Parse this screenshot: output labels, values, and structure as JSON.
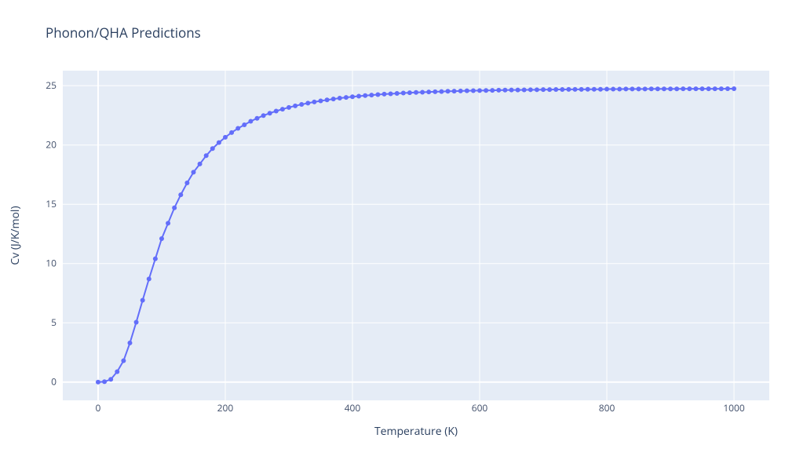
{
  "title": "Phonon/QHA Predictions",
  "chart": {
    "type": "line",
    "background_color": "#ffffff",
    "plot_bg_color": "#e5ecf6",
    "line_color": "#636efa",
    "marker_color": "#636efa",
    "marker_size": 6,
    "grid_color": "#ffffff",
    "tick_color": "#42506b",
    "title_color": "#2a3f5f",
    "x": {
      "title": "Temperature (K)",
      "min": -55.5,
      "max": 1055.5,
      "ticks": [
        0,
        200,
        400,
        600,
        800,
        1000
      ]
    },
    "y": {
      "title": "Cv (J/K/mol)",
      "min": -1.54,
      "max": 26.27,
      "ticks": [
        0,
        5,
        10,
        15,
        20,
        25
      ]
    },
    "data": [
      [
        0,
        0.0
      ],
      [
        10,
        0.03
      ],
      [
        20,
        0.23
      ],
      [
        30,
        0.88
      ],
      [
        40,
        1.8
      ],
      [
        50,
        3.3
      ],
      [
        60,
        5.05
      ],
      [
        70,
        6.9
      ],
      [
        80,
        8.7
      ],
      [
        90,
        10.4
      ],
      [
        100,
        12.1
      ],
      [
        110,
        13.4
      ],
      [
        120,
        14.7
      ],
      [
        130,
        15.8
      ],
      [
        140,
        16.8
      ],
      [
        150,
        17.7
      ],
      [
        160,
        18.4
      ],
      [
        170,
        19.1
      ],
      [
        180,
        19.7
      ],
      [
        190,
        20.2
      ],
      [
        200,
        20.65
      ],
      [
        210,
        21.05
      ],
      [
        220,
        21.4
      ],
      [
        230,
        21.7
      ],
      [
        240,
        22.0
      ],
      [
        250,
        22.25
      ],
      [
        260,
        22.48
      ],
      [
        270,
        22.68
      ],
      [
        280,
        22.86
      ],
      [
        290,
        23.02
      ],
      [
        300,
        23.17
      ],
      [
        310,
        23.3
      ],
      [
        320,
        23.42
      ],
      [
        330,
        23.53
      ],
      [
        340,
        23.63
      ],
      [
        350,
        23.72
      ],
      [
        360,
        23.8
      ],
      [
        370,
        23.88
      ],
      [
        380,
        23.95
      ],
      [
        390,
        24.01
      ],
      [
        400,
        24.07
      ],
      [
        410,
        24.12
      ],
      [
        420,
        24.17
      ],
      [
        430,
        24.21
      ],
      [
        440,
        24.25
      ],
      [
        450,
        24.29
      ],
      [
        460,
        24.32
      ],
      [
        470,
        24.35
      ],
      [
        480,
        24.38
      ],
      [
        490,
        24.41
      ],
      [
        500,
        24.43
      ],
      [
        510,
        24.45
      ],
      [
        520,
        24.47
      ],
      [
        530,
        24.49
      ],
      [
        540,
        24.51
      ],
      [
        550,
        24.53
      ],
      [
        560,
        24.54
      ],
      [
        570,
        24.56
      ],
      [
        580,
        24.57
      ],
      [
        590,
        24.58
      ],
      [
        600,
        24.59
      ],
      [
        610,
        24.6
      ],
      [
        620,
        24.61
      ],
      [
        630,
        24.62
      ],
      [
        640,
        24.63
      ],
      [
        650,
        24.64
      ],
      [
        660,
        24.64
      ],
      [
        670,
        24.65
      ],
      [
        680,
        24.66
      ],
      [
        690,
        24.66
      ],
      [
        700,
        24.67
      ],
      [
        710,
        24.67
      ],
      [
        720,
        24.68
      ],
      [
        730,
        24.68
      ],
      [
        740,
        24.69
      ],
      [
        750,
        24.69
      ],
      [
        760,
        24.69
      ],
      [
        770,
        24.7
      ],
      [
        780,
        24.7
      ],
      [
        790,
        24.7
      ],
      [
        800,
        24.71
      ],
      [
        810,
        24.71
      ],
      [
        820,
        24.71
      ],
      [
        830,
        24.72
      ],
      [
        840,
        24.72
      ],
      [
        850,
        24.72
      ],
      [
        860,
        24.72
      ],
      [
        870,
        24.73
      ],
      [
        880,
        24.73
      ],
      [
        890,
        24.73
      ],
      [
        900,
        24.73
      ],
      [
        910,
        24.73
      ],
      [
        920,
        24.74
      ],
      [
        930,
        24.74
      ],
      [
        940,
        24.74
      ],
      [
        950,
        24.74
      ],
      [
        960,
        24.74
      ],
      [
        970,
        24.74
      ],
      [
        980,
        24.74
      ],
      [
        990,
        24.75
      ],
      [
        1000,
        24.75
      ]
    ]
  }
}
